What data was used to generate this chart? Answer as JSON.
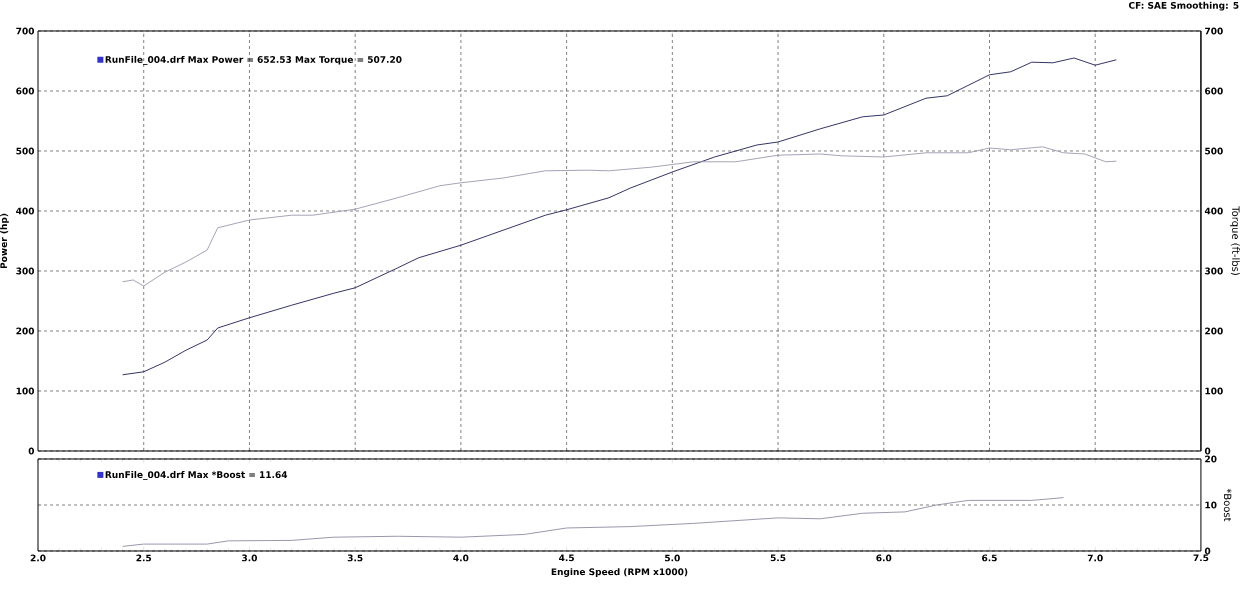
{
  "chart_data": [
    {
      "type": "line",
      "xlim": [
        2.0,
        7.5
      ],
      "xticks": [
        2.5,
        3.0,
        3.5,
        4.0,
        4.5,
        5.0,
        5.5,
        6.0,
        6.5,
        7.0
      ],
      "tick_labels": "y",
      "ylim": [
        0,
        700
      ],
      "yticks": [
        0,
        100,
        200,
        300,
        400,
        500,
        600,
        700
      ],
      "y2lim": [
        0,
        700
      ],
      "y2ticks": [
        0,
        100,
        200,
        300,
        400,
        500,
        600,
        700
      ],
      "ylabel": "Power (hp)",
      "y2label": "Torque (ft-lbs)",
      "grid": true,
      "marker": "none",
      "line_style": "solid",
      "annotations": [
        "CF: SAE  Smoothing: 5",
        "RunFile_004.drf Max Power = 652.53    Max Torque = 507.20"
      ],
      "series": [
        {
          "color": "#1e1e55",
          "x": [
            2.4,
            2.5,
            2.6,
            2.7,
            2.8,
            2.85,
            3.0,
            3.2,
            3.4,
            3.5,
            3.7,
            3.8,
            4.0,
            4.2,
            4.4,
            4.5,
            4.7,
            4.8,
            5.0,
            5.2,
            5.4,
            5.5,
            5.7,
            5.9,
            6.0,
            6.2,
            6.3,
            6.5,
            6.6,
            6.7,
            6.8,
            6.9,
            7.0,
            7.1
          ],
          "values": [
            127,
            132,
            148,
            168,
            185,
            205,
            222,
            243,
            263,
            272,
            305,
            322,
            343,
            368,
            393,
            402,
            422,
            438,
            465,
            490,
            510,
            515,
            537,
            557,
            560,
            588,
            592,
            627,
            632,
            648,
            647,
            655,
            643,
            652
          ]
        },
        {
          "color": "#9a9aae",
          "axis": "y2",
          "x": [
            2.4,
            2.45,
            2.5,
            2.6,
            2.7,
            2.8,
            2.85,
            3.0,
            3.2,
            3.3,
            3.5,
            3.7,
            3.9,
            4.0,
            4.2,
            4.4,
            4.6,
            4.7,
            4.9,
            5.1,
            5.3,
            5.5,
            5.7,
            5.8,
            6.0,
            6.2,
            6.4,
            6.5,
            6.6,
            6.75,
            6.85,
            6.95,
            7.05,
            7.1
          ],
          "values": [
            282,
            285,
            275,
            298,
            315,
            335,
            372,
            385,
            393,
            393,
            403,
            422,
            442,
            447,
            455,
            467,
            468,
            467,
            473,
            482,
            482,
            493,
            495,
            492,
            490,
            497,
            497,
            505,
            502,
            507,
            497,
            495,
            482,
            483
          ]
        }
      ]
    },
    {
      "type": "line",
      "xlim": [
        2.0,
        7.5
      ],
      "xticks": [
        {
          "value": 2.0,
          "label": "2.0"
        },
        2.5,
        {
          "value": 3.0,
          "label": "3.0"
        },
        3.5,
        {
          "value": 4.0,
          "label": "4.0"
        },
        4.5,
        {
          "value": 5.0,
          "label": "5.0"
        },
        5.5,
        {
          "value": 6.0,
          "label": "6.0"
        },
        6.5,
        {
          "value": 7.0,
          "label": "7.0"
        },
        7.5
      ],
      "y2lim": [
        0,
        20
      ],
      "y2ticks": [
        0,
        10,
        20
      ],
      "y2label": "*Boost",
      "xlabel": "Engine Speed (RPM x1000)",
      "grid": "y",
      "marker": "none",
      "line_style": "solid",
      "annotations": [
        "RunFile_004.drf Max *Boost = 11.64"
      ],
      "series": [
        {
          "color": "#8c8ca2",
          "axis": "y2",
          "x": [
            2.4,
            2.5,
            2.8,
            2.9,
            3.2,
            3.4,
            3.7,
            4.0,
            4.3,
            4.5,
            4.8,
            5.1,
            5.5,
            5.7,
            5.9,
            6.1,
            6.25,
            6.4,
            6.7,
            6.85
          ],
          "values": [
            1,
            1.5,
            1.5,
            2.2,
            2.3,
            3,
            3.2,
            3,
            3.6,
            5,
            5.3,
            6,
            7.2,
            7,
            8.2,
            8.5,
            10,
            11,
            11,
            11.6
          ]
        }
      ]
    }
  ]
}
